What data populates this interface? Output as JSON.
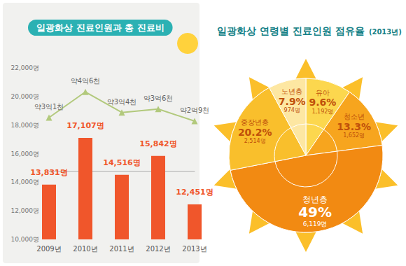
{
  "chart_data": [
    {
      "type": "bar",
      "title": "일광화상 진료인원과 총 진료비",
      "categories": [
        "2009년",
        "2010년",
        "2011년",
        "2012년",
        "2013년"
      ],
      "series": [
        {
          "type": "bar",
          "color": "#f0562b",
          "values": [
            13831,
            17107,
            14516,
            15842,
            12451
          ],
          "value_labels": [
            "13,831명",
            "17,107명",
            "14,516명",
            "15,842명",
            "12,451명"
          ]
        },
        {
          "type": "line",
          "axis": "y2",
          "color": "#b2c97c",
          "marker": "triangle",
          "values": [
            3.1,
            4.6,
            3.4,
            3.6,
            2.9
          ],
          "value_labels": [
            "약3억1천",
            "약4억6천",
            "약3억4천",
            "약3억6천",
            "약2억9천"
          ]
        }
      ],
      "ylim": [
        10000,
        22000
      ],
      "yticks": [
        {
          "value": 10000,
          "label": "10,000명"
        },
        {
          "value": 12000,
          "label": "12,000명"
        },
        {
          "value": 14000,
          "label": "14,000명"
        },
        {
          "value": 16000,
          "label": "16,000명"
        },
        {
          "value": 18000,
          "label": "18,000명"
        },
        {
          "value": 20000,
          "label": "20,000명"
        },
        {
          "value": 22000,
          "label": "22,000명"
        }
      ],
      "y2lim": [
        -4,
        6
      ],
      "grid": false,
      "data_labels": true
    },
    {
      "type": "pie",
      "title": "일광화상 연령별 진료인원 점유율",
      "subtitle": "(2013년)",
      "categories": [
        "유아",
        "청소년",
        "청년층",
        "중장년층",
        "노년층"
      ],
      "values": [
        9.6,
        13.3,
        49,
        20.2,
        7.9
      ],
      "value_labels": [
        "9.6%",
        "13.3%",
        "49%",
        "20.2%",
        "7.9%"
      ],
      "count_labels": [
        "1,192명",
        "1,652명",
        "6,119명",
        "2,514명",
        "974명"
      ],
      "colors": [
        "#fcd74e",
        "#f7a51e",
        "#f28a12",
        "#f9bf2c",
        "#fde7a2"
      ],
      "data_labels": true
    }
  ]
}
